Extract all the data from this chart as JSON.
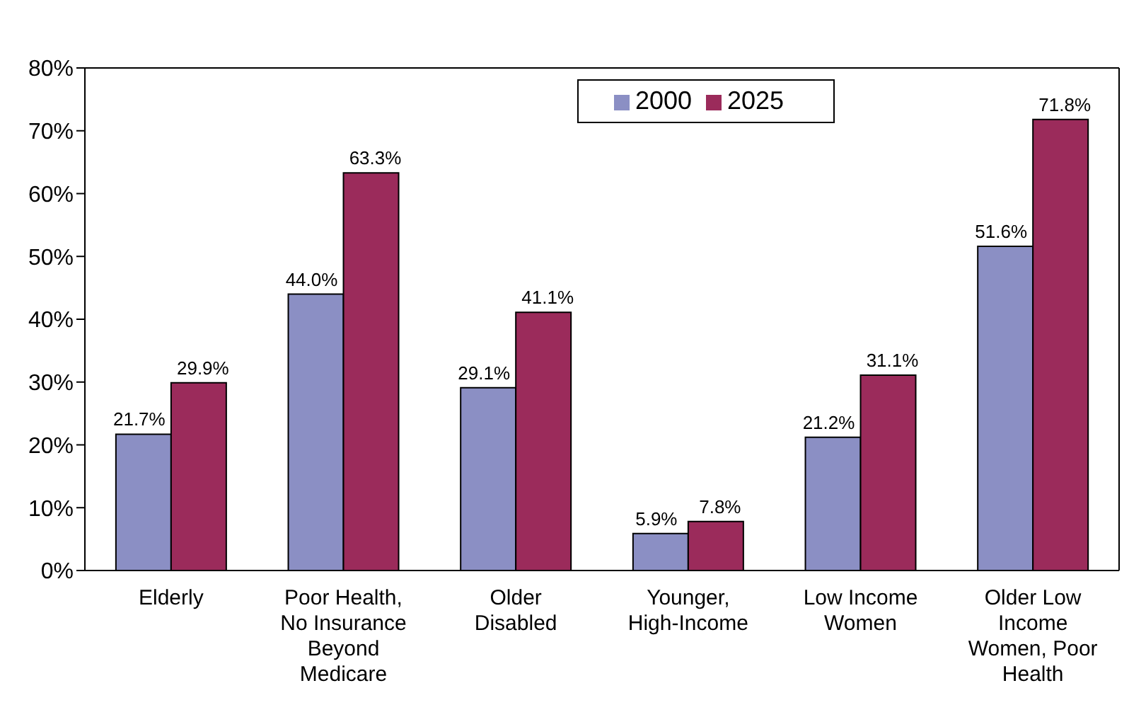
{
  "chart_data": {
    "type": "bar",
    "categories": [
      "Elderly",
      "Poor Health, No Insurance Beyond Medicare",
      "Older Disabled",
      "Younger, High-Income",
      "Low Income Women",
      "Older Low Income Women, Poor Health"
    ],
    "series": [
      {
        "name": "2000",
        "color": "#8b8fc4",
        "values": [
          21.7,
          44.0,
          29.1,
          5.9,
          21.2,
          51.6
        ],
        "value_labels": [
          "21.7%",
          "44.0%",
          "29.1%",
          "5.9%",
          "21.2%",
          "51.6%"
        ]
      },
      {
        "name": "2025",
        "color": "#9b2b5b",
        "values": [
          29.9,
          63.3,
          41.1,
          7.8,
          31.1,
          71.8
        ],
        "value_labels": [
          "29.9%",
          "63.3%",
          "41.1%",
          "7.8%",
          "31.1%",
          "71.8%"
        ]
      }
    ],
    "ylim": [
      0,
      80
    ],
    "yticks": [
      {
        "value": 0,
        "label": "0%"
      },
      {
        "value": 10,
        "label": "10%"
      },
      {
        "value": 20,
        "label": "20%"
      },
      {
        "value": 30,
        "label": "30%"
      },
      {
        "value": 40,
        "label": "40%"
      },
      {
        "value": 50,
        "label": "50%"
      },
      {
        "value": 60,
        "label": "60%"
      },
      {
        "value": 70,
        "label": "70%"
      },
      {
        "value": 80,
        "label": "80%"
      }
    ],
    "legend": "top"
  }
}
